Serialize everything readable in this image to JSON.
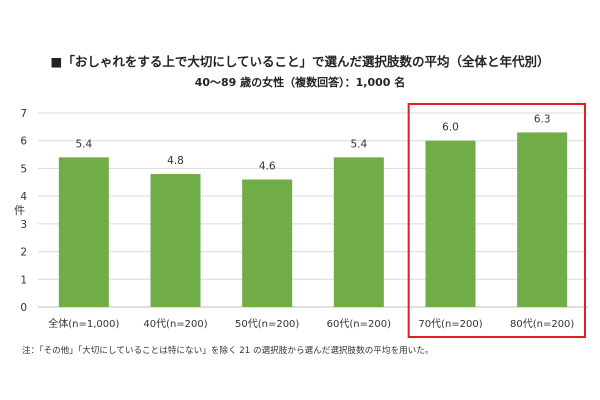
{
  "chart_data": {
    "type": "bar",
    "title": "■「おしゃれをする上で大切にしていること」で選んだ選択肢数の平均（全体と年代別）",
    "subtitle": "40～89 歳の女性（複数回答）：1,000 名",
    "xlabel": "",
    "ylabel": "件",
    "ylim": [
      0,
      7
    ],
    "yticks": [
      "0",
      "1",
      "2",
      "3",
      "4",
      "5",
      "6",
      "7"
    ],
    "grid": true,
    "categories": [
      "全体(n=1,000)",
      "40代(n=200)",
      "50代(n=200)",
      "60代(n=200)",
      "70代(n=200)",
      "80代(n=200)"
    ],
    "values": [
      5.4,
      4.8,
      4.6,
      5.4,
      6.0,
      6.3
    ],
    "value_labels": [
      "5.4",
      "4.8",
      "4.6",
      "5.4",
      "6.0",
      "6.3"
    ],
    "bar_color": "#70ad47",
    "highlight": {
      "categories": [
        "70代(n=200)",
        "80代(n=200)"
      ],
      "color": "#e02020"
    },
    "note": "注：「その他」「大切にしていることは特にない」を除く 21 の選択肢から選んだ選択肢数の平均を用いた。"
  }
}
